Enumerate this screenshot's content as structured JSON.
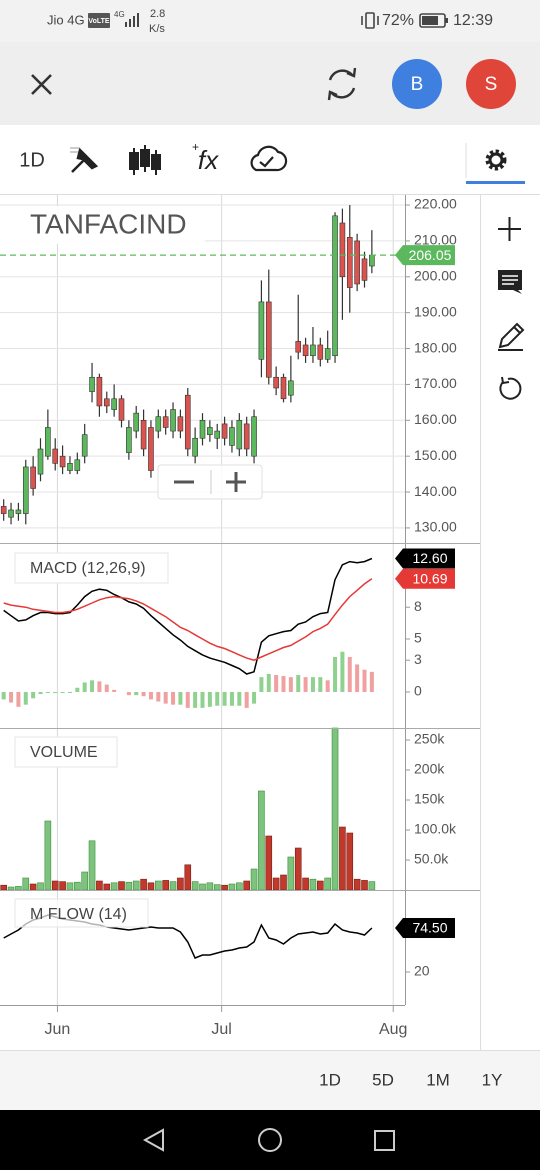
{
  "status_bar": {
    "carrier": "Jio 4G",
    "volte": "VoLTE",
    "network": "4G",
    "speed": "2.8",
    "speed_unit": "K/s",
    "battery": "72%",
    "time": "12:39"
  },
  "top_bar": {
    "avatars": [
      "B",
      "S"
    ]
  },
  "toolbar": {
    "interval": "1D",
    "indicator": "fx"
  },
  "chart_data": [
    {
      "type": "candlestick",
      "title": "TANFACIND",
      "open": [
        136,
        133,
        134,
        134,
        147,
        145,
        150,
        152,
        150,
        146,
        146,
        150,
        168,
        172,
        166,
        163,
        166,
        151,
        157,
        160,
        158,
        157,
        161,
        157,
        161,
        167,
        150,
        155,
        156,
        155,
        159,
        153,
        152,
        159,
        150,
        177,
        193,
        172,
        172,
        167,
        182,
        181,
        178,
        181,
        177,
        178,
        215,
        211,
        210,
        205,
        203
      ],
      "high": [
        138,
        137,
        137,
        149,
        150,
        155,
        163,
        155,
        153,
        150,
        151,
        159,
        176,
        173,
        168,
        170,
        167,
        160,
        164,
        163,
        160,
        163,
        163,
        165,
        163,
        169,
        158,
        162,
        160,
        159,
        161,
        160,
        162,
        161,
        163,
        199,
        202,
        175,
        173,
        178,
        195,
        183,
        186,
        183,
        185,
        218,
        219,
        220,
        212,
        207,
        213
      ],
      "low": [
        132,
        131,
        132,
        131,
        139,
        143,
        149,
        146,
        145,
        145,
        145,
        148,
        165,
        161,
        162,
        161,
        158,
        149,
        155,
        150,
        144,
        155,
        156,
        155,
        155,
        150,
        148,
        153,
        154,
        152,
        153,
        151,
        150,
        150,
        148,
        172,
        170,
        167,
        165,
        165,
        177,
        176,
        176,
        175,
        176,
        176,
        188,
        190,
        196,
        197,
        201
      ],
      "close": [
        134,
        135,
        135,
        147,
        141,
        152,
        158,
        148,
        147,
        148,
        149,
        156,
        172,
        164,
        164,
        166,
        160,
        158,
        162,
        152,
        146,
        161,
        158,
        163,
        157,
        152,
        155,
        160,
        158,
        157,
        155,
        158,
        160,
        152,
        161,
        193,
        172,
        169,
        166,
        171,
        179,
        178,
        181,
        177,
        180,
        217,
        200,
        197,
        198,
        199,
        206.05
      ],
      "up_color": "#5cb85c",
      "down_color": "#d9534f",
      "ylim": [
        125.8,
        222.8
      ],
      "yticks": [
        {
          "value": 130,
          "label": "130.00"
        },
        {
          "value": 140,
          "label": "140.00"
        },
        {
          "value": 150,
          "label": "150.00"
        },
        {
          "value": 160,
          "label": "160.00"
        },
        {
          "value": 170,
          "label": "170.00"
        },
        {
          "value": 180,
          "label": "180.00"
        },
        {
          "value": 190,
          "label": "190.00"
        },
        {
          "value": 200,
          "label": "200.00"
        },
        {
          "value": 210,
          "label": "210.00"
        },
        {
          "value": 220,
          "label": "220.00"
        }
      ],
      "grid": true
    },
    {
      "type": "line",
      "title": "MACD (12,26,9)",
      "series": [
        {
          "color": "#000000",
          "values": [
            7.7,
            7.2,
            6.7,
            6.8,
            7.2,
            7.5,
            7.5,
            7.4,
            7.4,
            7.5,
            8.2,
            9.0,
            9.5,
            9.7,
            9.6,
            9.2,
            8.9,
            8.5,
            8.3,
            7.9,
            7.2,
            6.6,
            6.0,
            5.4,
            4.9,
            4.3,
            3.9,
            3.5,
            3.2,
            3.0,
            2.8,
            2.5,
            2.2,
            1.7,
            1.9,
            4.7,
            5.3,
            5.5,
            5.7,
            5.8,
            6.4,
            6.6,
            7.1,
            7.4,
            7.5,
            10.6,
            12.0,
            12.3,
            12.2,
            12.3,
            12.6
          ],
          "value_labels": [
            null,
            null,
            null,
            null,
            null,
            null,
            null,
            null,
            null,
            null,
            null,
            null,
            null,
            null,
            null,
            null,
            null,
            null,
            null,
            null,
            null,
            null,
            null,
            null,
            null,
            null,
            null,
            null,
            null,
            null,
            null,
            null,
            null,
            null,
            null,
            null,
            null,
            null,
            null,
            null,
            null,
            null,
            null,
            null,
            null,
            null,
            null,
            null,
            null,
            null,
            "12.60"
          ]
        },
        {
          "color": "#e53935",
          "values": [
            8.4,
            8.2,
            8.1,
            8.0,
            7.8,
            7.7,
            7.6,
            7.5,
            7.5,
            7.6,
            7.8,
            8.1,
            8.4,
            8.7,
            8.9,
            9.0,
            8.9,
            8.8,
            8.6,
            8.3,
            7.9,
            7.5,
            7.1,
            6.6,
            6.1,
            5.8,
            5.4,
            5.0,
            4.6,
            4.3,
            4.1,
            3.8,
            3.5,
            3.2,
            3.0,
            3.3,
            3.6,
            3.9,
            4.2,
            4.4,
            4.8,
            5.2,
            5.7,
            6.0,
            6.4,
            7.3,
            8.2,
            9.0,
            9.6,
            10.2,
            10.69
          ]
        },
        {
          "type": "bar",
          "up_color": "#8fd18f",
          "down_color": "#f0a0a0",
          "values": [
            -0.7,
            -1.0,
            -1.4,
            -1.2,
            -0.6,
            -0.2,
            -0.1,
            -0.1,
            -0.1,
            -0.1,
            0.4,
            0.9,
            1.1,
            1.0,
            0.7,
            0.2,
            0.0,
            -0.3,
            -0.3,
            -0.4,
            -0.7,
            -0.9,
            -1.1,
            -1.2,
            -1.2,
            -1.5,
            -1.5,
            -1.5,
            -1.4,
            -1.3,
            -1.3,
            -1.3,
            -1.3,
            -1.5,
            -1.1,
            1.4,
            1.7,
            1.6,
            1.5,
            1.4,
            1.6,
            1.4,
            1.4,
            1.4,
            1.1,
            3.3,
            3.8,
            3.3,
            2.6,
            2.1,
            1.9
          ]
        }
      ],
      "ylim": [
        -3.4,
        14.06
      ],
      "yticks": [
        0,
        3,
        5,
        8
      ]
    },
    {
      "type": "bar",
      "title": "VOLUME",
      "values": [
        8000,
        5000,
        6000,
        20000,
        10000,
        12000,
        115000,
        15000,
        14000,
        12000,
        13000,
        30000,
        82000,
        15000,
        10000,
        12000,
        14000,
        13000,
        15000,
        18000,
        12000,
        15000,
        16000,
        14000,
        20000,
        42000,
        14000,
        10000,
        12000,
        9000,
        8000,
        10000,
        12000,
        15000,
        35000,
        165000,
        90000,
        20000,
        25000,
        55000,
        70000,
        20000,
        18000,
        15000,
        20000,
        270000,
        105000,
        95000,
        18000,
        16000,
        14000
      ],
      "up_color": "#7dc27d",
      "down_color": "#c0392b",
      "ylim": [
        0,
        270000
      ],
      "yticks": [
        {
          "value": 50000,
          "label": "50.0k"
        },
        {
          "value": 100000,
          "label": "100.0k"
        },
        {
          "value": 150000,
          "label": "150k"
        },
        {
          "value": 200000,
          "label": "200k"
        },
        {
          "value": 250000,
          "label": "250k"
        }
      ]
    },
    {
      "type": "line",
      "title": "M FLOW (14)",
      "series": [
        {
          "color": "#000000",
          "values": [
            62.1,
            67.1,
            72.0,
            79.5,
            84.4,
            86.9,
            90.6,
            88.2,
            85.7,
            84.4,
            83.2,
            82.0,
            79.5,
            78.2,
            75.8,
            74.5,
            73.3,
            72.0,
            73.3,
            74.5,
            75.8,
            74.5,
            74.5,
            74.5,
            69.6,
            57.2,
            37.3,
            41.1,
            41.1,
            43.5,
            46.0,
            47.3,
            49.7,
            51.0,
            57.2,
            78.2,
            62.1,
            59.7,
            54.7,
            62.1,
            67.1,
            68.3,
            69.6,
            67.1,
            68.3,
            79.5,
            72.0,
            69.6,
            68.3,
            65.8,
            74.5
          ],
          "value_labels": [
            null,
            null,
            null,
            null,
            null,
            null,
            null,
            null,
            null,
            null,
            null,
            null,
            null,
            null,
            null,
            null,
            null,
            null,
            null,
            null,
            null,
            null,
            null,
            null,
            null,
            null,
            null,
            null,
            null,
            null,
            null,
            null,
            null,
            null,
            null,
            null,
            null,
            null,
            null,
            null,
            null,
            null,
            null,
            null,
            null,
            null,
            null,
            null,
            null,
            null,
            "74.50"
          ]
        }
      ],
      "ylim": [
        -20.9,
        121.6
      ],
      "yticks": [
        20
      ],
      "xlim": [
        -0.5,
        54.5
      ],
      "xticks": [
        {
          "value": 7.3,
          "label": "Jun"
        },
        {
          "value": 29.6,
          "label": "Jul"
        },
        {
          "value": 52.9,
          "label": "Aug"
        }
      ]
    }
  ],
  "timeframes": [
    "1D",
    "5D",
    "1M",
    "1Y"
  ]
}
